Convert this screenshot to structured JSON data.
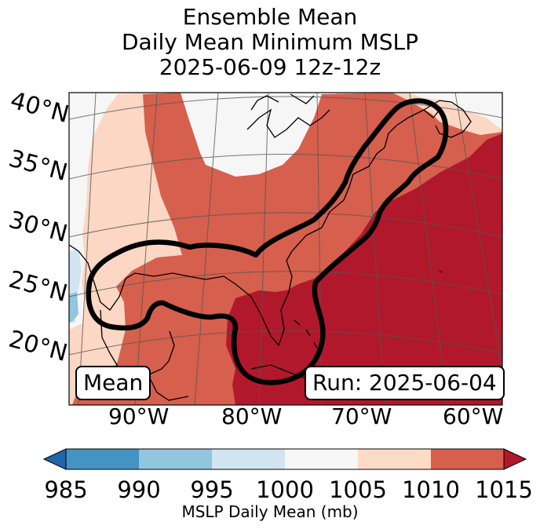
{
  "title": {
    "line1": "Ensemble Mean",
    "line2": "Daily Mean Minimum MSLP",
    "line3": "2025-06-09 12z-12z"
  },
  "map": {
    "latitude_labels": [
      "40°N",
      "35°N",
      "30°N",
      "25°N",
      "20°N"
    ],
    "longitude_labels": [
      "90°W",
      "80°W",
      "70°W",
      "60°W"
    ],
    "mean_box": "Mean",
    "run_box": "Run: 2025-06-04",
    "field_colors": {
      "1000-1005": "#f6f6f6",
      "1005-1010": "#fbd7c4",
      "1010-1015": "#d6604d",
      "above-1015": "#b2182b",
      "995-1000": "#d1e5f0",
      "990-995": "#92c5de"
    }
  },
  "colorbar": {
    "ticks": [
      "985",
      "990",
      "995",
      "1000",
      "1005",
      "1010",
      "1015"
    ],
    "label": "MSLP Daily Mean (mb)",
    "colors": [
      "#4393c3",
      "#92c5de",
      "#d1e5f0",
      "#f7f7f7",
      "#fddbc7",
      "#d6604d"
    ],
    "under_color": "#2166ac",
    "over_color": "#b2182b"
  }
}
